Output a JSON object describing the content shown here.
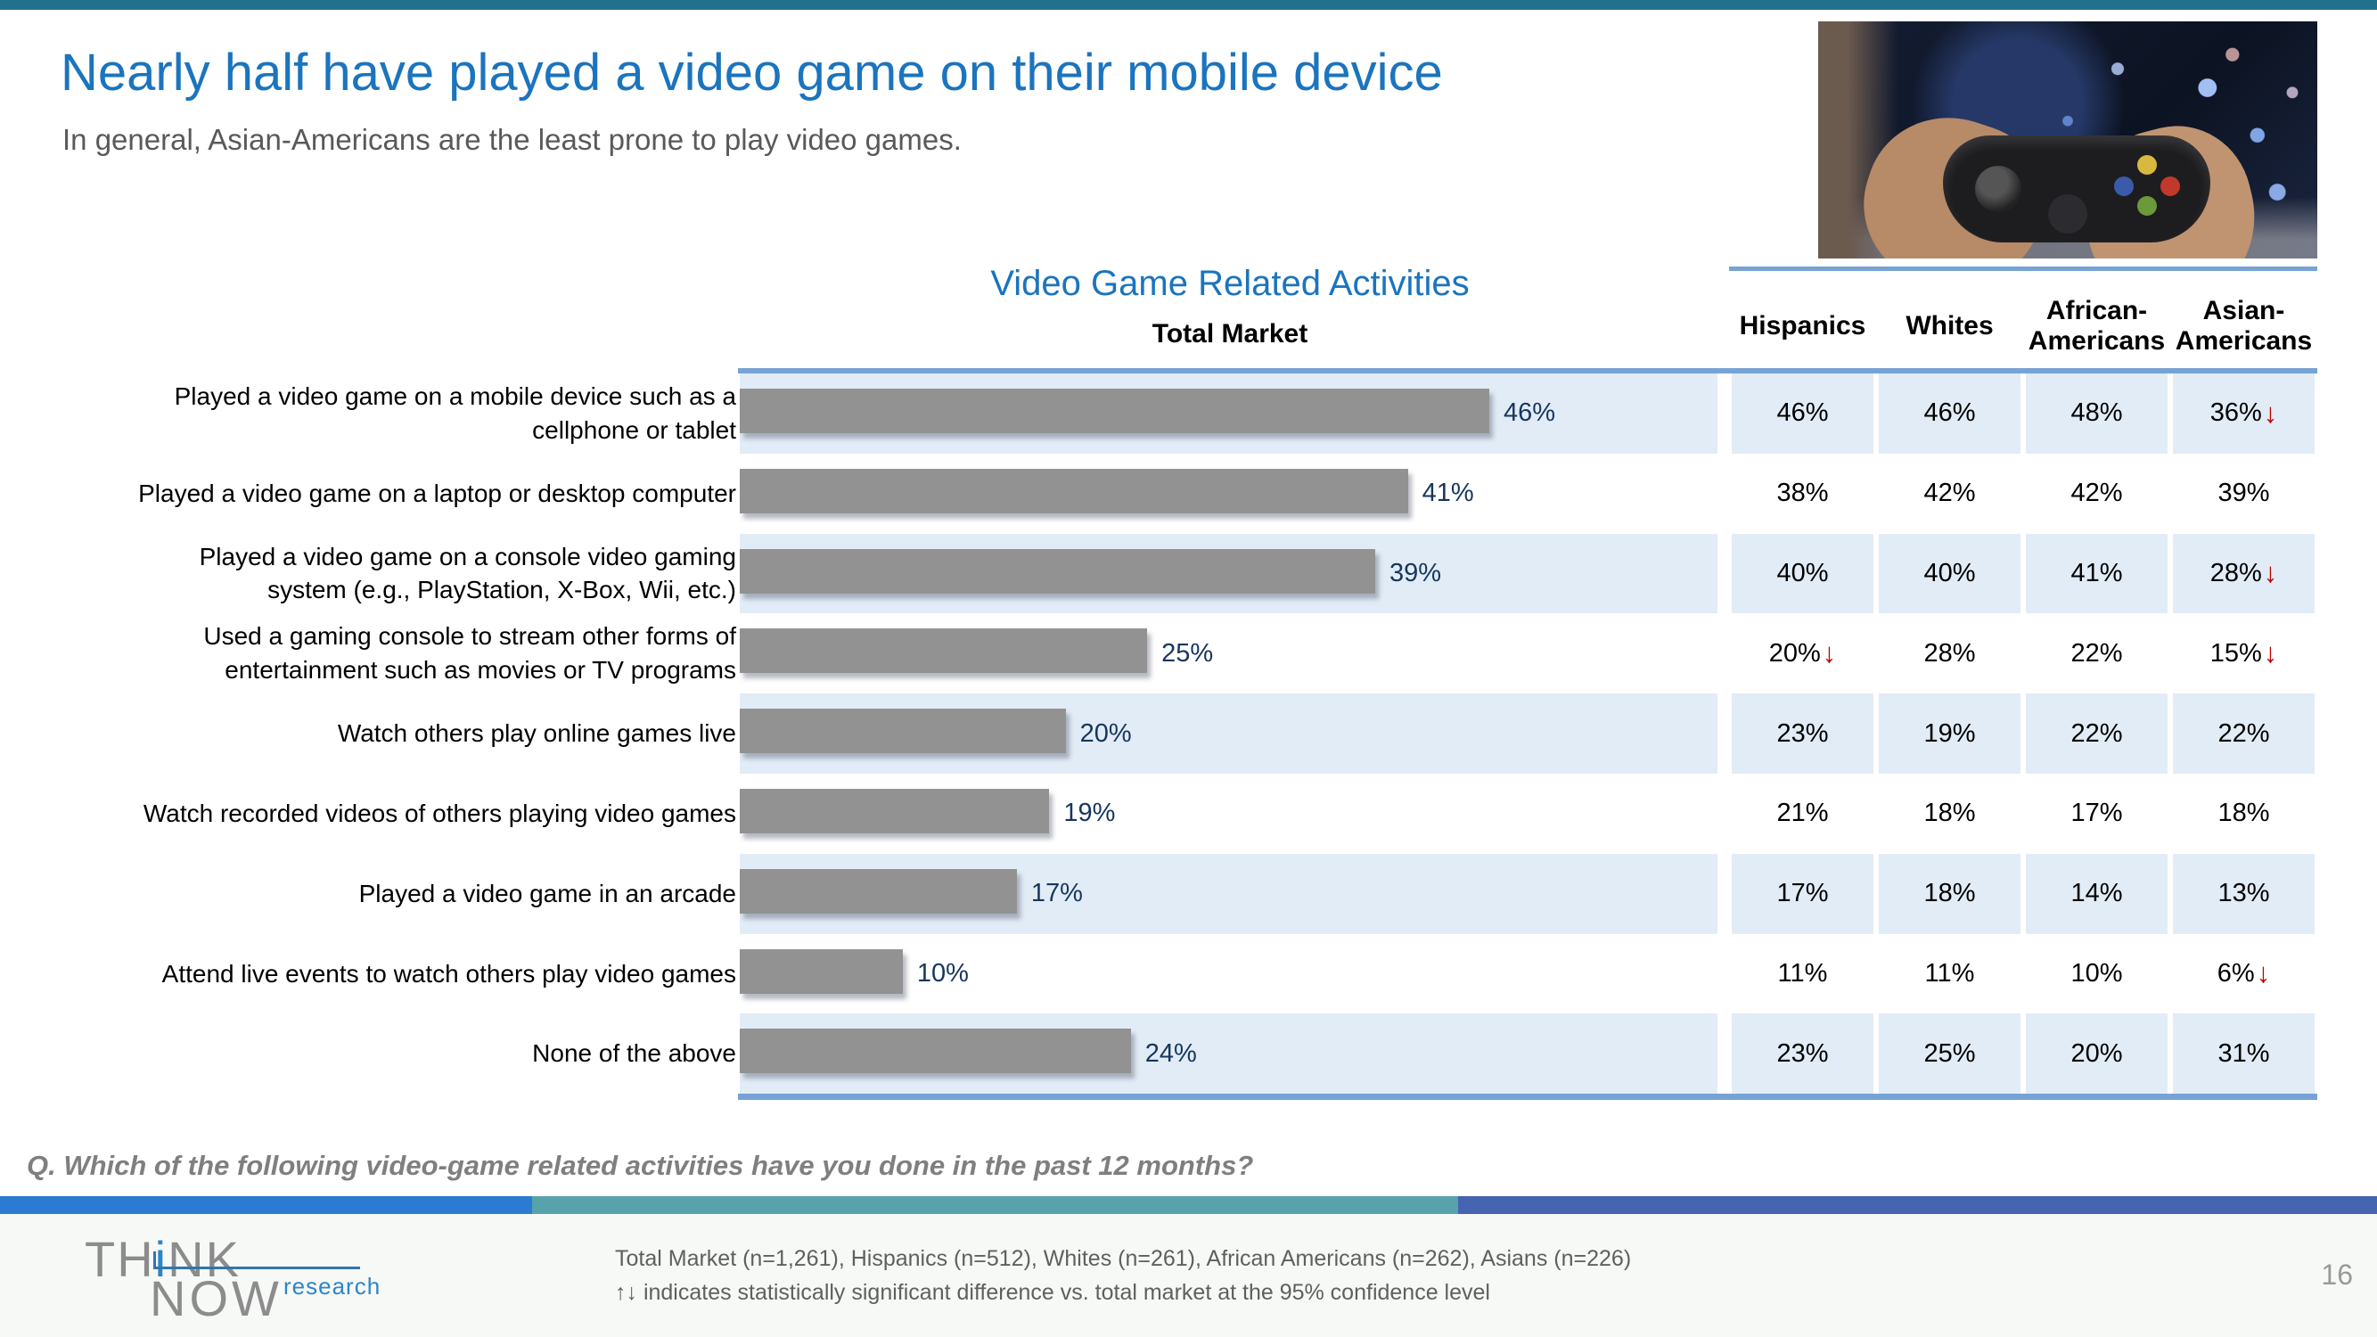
{
  "slide": {
    "title": "Nearly half have played a video game on their mobile device",
    "subtitle": "In general, Asian-Americans are the least prone to play video games.",
    "question": "Q. Which of the following video-game related activities have you done in the past 12 months?",
    "page_number": "16",
    "footnote_line1": "Total Market (n=1,261), Hispanics (n=512), Whites (n=261), African Americans (n=262), Asians (n=226)",
    "footnote_line2": "↑↓ indicates statistically significant difference vs. total market at the 95% confidence level"
  },
  "logo": {
    "think": "THiNK",
    "now": "NOW",
    "research": "research"
  },
  "chart_data": {
    "type": "bar",
    "orientation": "horizontal",
    "title": "Video Game Related Activities",
    "total_market_label": "Total Market",
    "xlim": [
      0,
      60
    ],
    "grid": false,
    "categories": [
      "Played a video game on a mobile device such as a cellphone or tablet",
      "Played a video game on a laptop or desktop computer",
      "Played a video game on a console video gaming system (e.g., PlayStation, X-Box, Wii, etc.)",
      "Used a gaming console to stream other forms of entertainment such as movies or TV programs",
      "Watch others play online games live",
      "Watch recorded videos of others playing video games",
      "Played a video game in an arcade",
      "Attend live events to watch others play video games",
      "None of the above"
    ],
    "series": [
      {
        "name": "Total Market",
        "values": [
          46,
          41,
          39,
          25,
          20,
          19,
          17,
          10,
          24
        ]
      },
      {
        "name": "Hispanics",
        "values": [
          46,
          38,
          40,
          20,
          23,
          21,
          17,
          11,
          23
        ]
      },
      {
        "name": "Whites",
        "values": [
          46,
          42,
          40,
          28,
          19,
          18,
          18,
          11,
          25
        ]
      },
      {
        "name": "African-Americans",
        "values": [
          48,
          42,
          41,
          22,
          22,
          17,
          14,
          10,
          20
        ]
      },
      {
        "name": "Asian-Americans",
        "values": [
          36,
          39,
          28,
          15,
          22,
          18,
          13,
          6,
          31
        ]
      }
    ],
    "significant_down_rows": {
      "Hispanics": [
        3
      ],
      "Whites": [],
      "African-Americans": [],
      "Asian-Americans": [
        0,
        2,
        3,
        7
      ]
    },
    "value_suffix": "%"
  },
  "table": {
    "col_headers": [
      "Hispanics",
      "Whites",
      "African-\nAmericans",
      "Asian-\nAmericans"
    ]
  },
  "colors": {
    "title_blue": "#1B74BE",
    "top_strip_teal": "#21708C",
    "accent_line_blue": "#76A3D4",
    "row_band_blue": "#E2ECF6",
    "bar_gray": "#929292",
    "bar_value_navy": "#17365D",
    "significance_arrow_red": "#C00000",
    "footer_stripe": [
      "#2B7BD2",
      "#58A3AB",
      "#4565B0"
    ],
    "controller_buttons": [
      "#d8b940",
      "#c0392b",
      "#6a9a3a",
      "#3a5ba9"
    ]
  }
}
